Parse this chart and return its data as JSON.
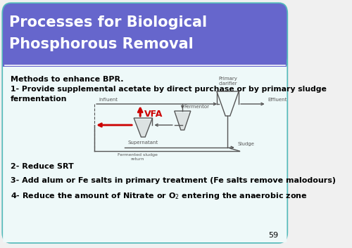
{
  "title_line1": "Processes for Biological",
  "title_line2": "Phosphorous Removal",
  "title_bg_color": "#6666cc",
  "title_text_color": "#ffffff",
  "slide_bg_color": "#f0f0f0",
  "border_color": "#55bbbb",
  "body_bg_color": "#eef9f9",
  "text_color": "#000000",
  "slide_number": "59",
  "methods_header": "Methods to enhance BPR.",
  "point1a": "1- Provide supplemental acetate by direct purchase or by primary sludge",
  "point1b": "fermentation",
  "point2": "2- Reduce SRT",
  "point3": "3- Add alum or Fe salts in primary treatment (Fe salts remove malodours)",
  "vfa_color": "#cc0000",
  "diagram_color": "#555555"
}
